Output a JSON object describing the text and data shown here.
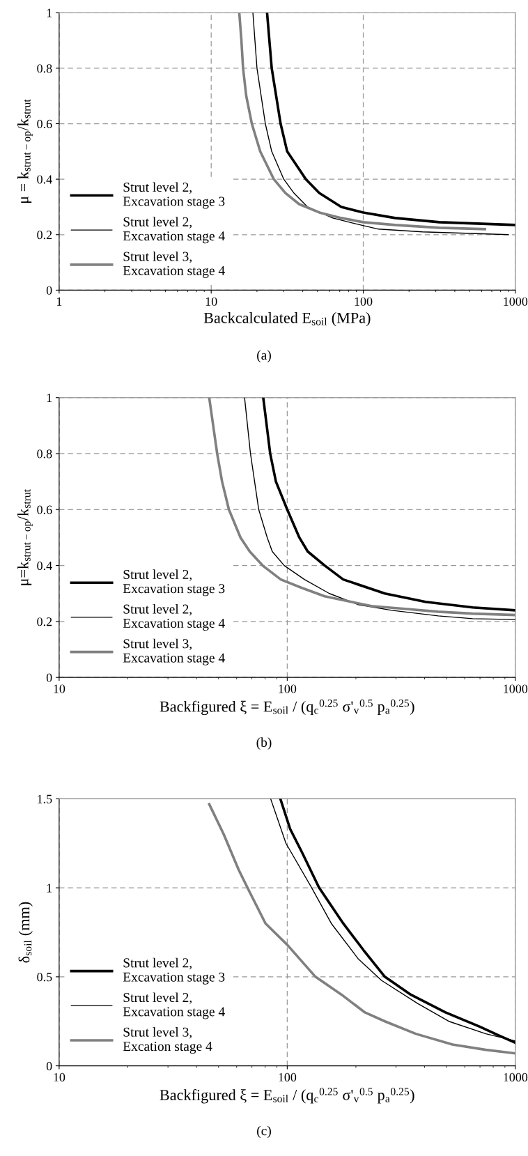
{
  "chart_data": [
    {
      "type": "line",
      "xlabel": "Backcalculated E$_{soil}$ (MPa)",
      "ylabel": "μ = k$_{strut−op}$/k$_{strut}$",
      "log": "x",
      "xlim": [
        1,
        1000
      ],
      "xticks": [
        1,
        10,
        100,
        1000
      ],
      "ylim": [
        0,
        1
      ],
      "yticks": [
        0,
        0.2,
        0.4,
        0.6,
        0.8,
        1
      ],
      "grid": true,
      "legend": "bottom left",
      "annotations": [
        "(a)"
      ],
      "series": [
        {
          "name": "Strut level 2,\nExcavation stage 3",
          "color": "#000000",
          "x": [
            23.3,
            25,
            28.6,
            31.6,
            41.9,
            51.4,
            71.7,
            100,
            162,
            316,
            1000
          ],
          "values": [
            1,
            0.8,
            0.6,
            0.5,
            0.4,
            0.35,
            0.3,
            0.28,
            0.26,
            0.245,
            0.235
          ]
        },
        {
          "name": "Strut level 2,\nExcavation stage 4",
          "color": "#000000",
          "x": [
            18.8,
            20,
            22.7,
            25,
            30,
            35,
            43,
            63,
            88,
            126,
            245,
            900
          ],
          "values": [
            1,
            0.8,
            0.6,
            0.5,
            0.4,
            0.35,
            0.3,
            0.26,
            0.24,
            0.22,
            0.21,
            0.2
          ]
        },
        {
          "name": "Strut level 3,\nExcavation stage 4",
          "color": "#808080",
          "x": [
            15.3,
            15.8,
            16.2,
            17,
            18.5,
            21,
            25.8,
            30.8,
            37.9,
            51.4,
            71.7,
            100,
            162,
            316,
            631
          ],
          "values": [
            1,
            0.9,
            0.8,
            0.7,
            0.6,
            0.5,
            0.4,
            0.35,
            0.31,
            0.28,
            0.26,
            0.245,
            0.235,
            0.225,
            0.22
          ]
        }
      ]
    },
    {
      "type": "line",
      "xlabel": "Backfigured ξ = E$_{soil}$ / (q$_{c}$$^{0.25}$ σ'$_{v}$$^{0.5}$ p$_{a}$$^{0.25}$)",
      "ylabel": "μ=k$_{strut−op}$/k$_{strut}$",
      "log": "x",
      "xlim": [
        10,
        1000
      ],
      "xticks": [
        10,
        100,
        1000
      ],
      "ylim": [
        0,
        1
      ],
      "yticks": [
        0,
        0.2,
        0.4,
        0.6,
        0.8,
        1
      ],
      "grid": true,
      "legend": "bottom left",
      "annotations": [
        "(b)"
      ],
      "series": [
        {
          "name": "Strut level 2,\nExcavation stage 3",
          "color": "#000000",
          "x": [
            78.5,
            84.2,
            89.2,
            100,
            113,
            123,
            146,
            176,
            268,
            404,
            650,
            1000
          ],
          "values": [
            1,
            0.8,
            0.7,
            0.6,
            0.5,
            0.45,
            0.4,
            0.35,
            0.3,
            0.27,
            0.25,
            0.24
          ]
        },
        {
          "name": "Strut level 2,\nExcavation stage 4",
          "color": "#000000",
          "x": [
            65,
            69,
            75,
            81.7,
            86,
            97,
            119,
            153,
            205,
            287,
            459,
            650,
            1000
          ],
          "values": [
            1,
            0.8,
            0.6,
            0.5,
            0.45,
            0.4,
            0.35,
            0.3,
            0.26,
            0.24,
            0.22,
            0.21,
            0.207
          ]
        },
        {
          "name": "Strut level 3,\nExcavation stage 4",
          "color": "#808080",
          "x": [
            45.5,
            49.3,
            51.8,
            55.5,
            62.4,
            68.5,
            78,
            93.7,
            116,
            146,
            191,
            234,
            327,
            459,
            650,
            1000
          ],
          "values": [
            1,
            0.8,
            0.7,
            0.6,
            0.5,
            0.45,
            0.4,
            0.35,
            0.32,
            0.29,
            0.27,
            0.255,
            0.245,
            0.235,
            0.228,
            0.223
          ]
        }
      ]
    },
    {
      "type": "line",
      "xlabel": "Backfigured ξ = E$_{soil}$ / (q$_{c}$$^{0.25}$ σ'$_{v}$$^{0.5}$ p$_{a}$$^{0.25}$)",
      "ylabel": "δ$_{soil}$ (mm)",
      "log": "x",
      "xlim": [
        10,
        1000
      ],
      "xticks": [
        10,
        100,
        1000
      ],
      "ylim": [
        0,
        1.5
      ],
      "yticks": [
        0,
        0.5,
        1,
        1.5
      ],
      "grid": true,
      "legend": "bottom left",
      "annotations": [
        "(c)"
      ],
      "series": [
        {
          "name": "Strut level 2,\nExcavation stage 3",
          "color": "#000000",
          "x": [
            93.3,
            103,
            116,
            138,
            176,
            216,
            268,
            348,
            494,
            698,
            848,
            1000
          ],
          "values": [
            1.5,
            1.33,
            1.2,
            1.0,
            0.8,
            0.65,
            0.5,
            0.4,
            0.3,
            0.22,
            0.17,
            0.13
          ]
        },
        {
          "name": "Strut level 2,\nExcavation stage 4",
          "color": "#000000",
          "x": [
            84.6,
            98.7,
            128,
            156,
            205,
            259,
            373,
            511,
            743,
            1000
          ],
          "values": [
            1.5,
            1.25,
            1.0,
            0.8,
            0.6,
            0.48,
            0.35,
            0.25,
            0.18,
            0.14
          ]
        },
        {
          "name": "Strut level 3,\nExcation stage 4",
          "color": "#808080",
          "x": [
            45.5,
            52.7,
            61.3,
            68.2,
            80.3,
            100,
            133,
            173,
            219,
            268,
            366,
            530,
            743,
            1000
          ],
          "values": [
            1.47,
            1.3,
            1.1,
            0.98,
            0.8,
            0.68,
            0.5,
            0.4,
            0.3,
            0.25,
            0.18,
            0.12,
            0.09,
            0.07
          ]
        }
      ]
    }
  ]
}
